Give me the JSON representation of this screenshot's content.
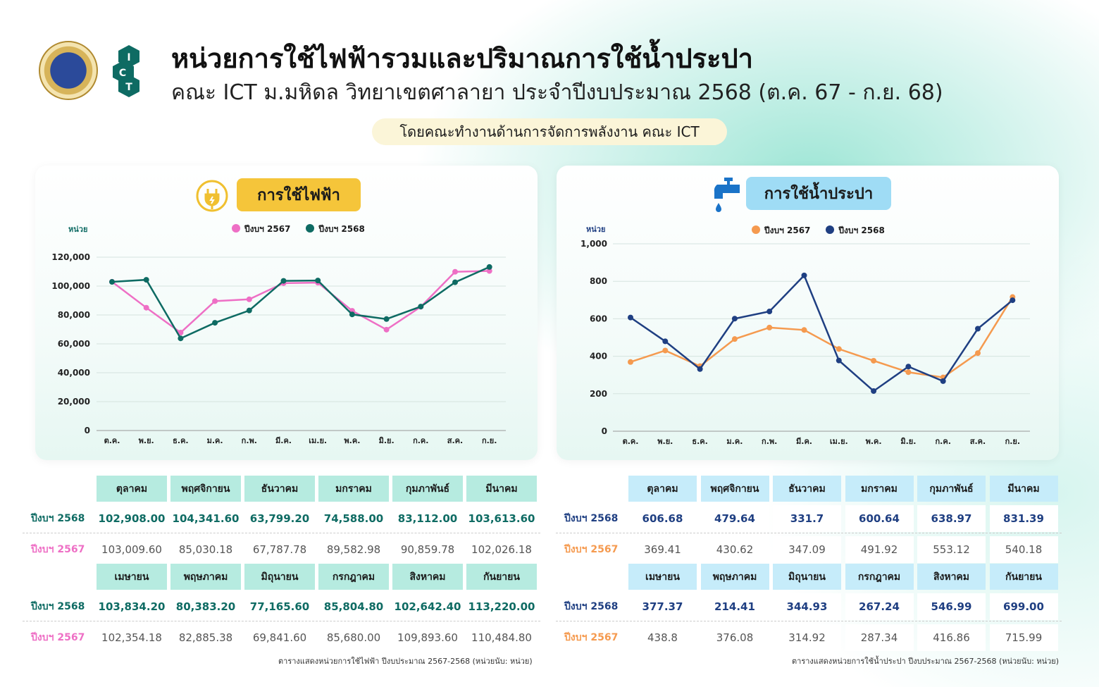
{
  "header": {
    "title": "หน่วยการใช้ไฟฟ้ารวมและปริมาณการใช้น้ำประปา",
    "subtitle": "คณะ ICT ม.มหิดล วิทยาเขตศาลายา ประจำปีงบประมาณ 2568 (ต.ค. 67 - ก.ย. 68)",
    "byline": "โดยคณะทำงานด้านการจัดการพลังงาน คณะ ICT",
    "logo_text": "ICT"
  },
  "months_short": [
    "ต.ค.",
    "พ.ย.",
    "ธ.ค.",
    "ม.ค.",
    "ก.พ.",
    "มี.ค.",
    "เม.ย.",
    "พ.ค.",
    "มิ.ย.",
    "ก.ค.",
    "ส.ค.",
    "ก.ย."
  ],
  "months_full": [
    "ตุลาคม",
    "พฤศจิกายน",
    "ธันวาคม",
    "มกราคม",
    "กุมภาพันธ์",
    "มีนาคม",
    "เมษายน",
    "พฤษภาคม",
    "มิถุนายน",
    "กรกฎาคม",
    "สิงหาคม",
    "กันยายน"
  ],
  "row_labels": {
    "y2568": "ปีงบฯ 2568",
    "y2567": "ปีงบฯ 2567"
  },
  "electric": {
    "badge": "การใช้ไฟฟ้า",
    "caption": "ตารางแสดงหน่วยการใช้ไฟฟ้า ปีงบประมาณ 2567-2568 (หน่วยนับ: หน่วย)",
    "table_2568": [
      "102,908.00",
      "104,341.60",
      "63,799.20",
      "74,588.00",
      "83,112.00",
      "103,613.60",
      "103,834.20",
      "80,383.20",
      "77,165.60",
      "85,804.80",
      "102,642.40",
      "113,220.00"
    ],
    "table_2567": [
      "103,009.60",
      "85,030.18",
      "67,787.78",
      "89,582.98",
      "90,859.78",
      "102,026.18",
      "102,354.18",
      "82,885.38",
      "69,841.60",
      "85,680.00",
      "109,893.60",
      "110,484.80"
    ]
  },
  "water": {
    "badge": "การใช้น้ำประปา",
    "caption": "ตารางแสดงหน่วยการใช้น้ำประปา ปีงบประมาณ 2567-2568 (หน่วยนับ: หน่วย)",
    "table_2568": [
      "606.68",
      "479.64",
      "331.7",
      "600.64",
      "638.97",
      "831.39",
      "377.37",
      "214.41",
      "344.93",
      "267.24",
      "546.99",
      "699.00"
    ],
    "table_2567": [
      "369.41",
      "430.62",
      "347.09",
      "491.92",
      "553.12",
      "540.18",
      "438.8",
      "376.08",
      "314.92",
      "287.34",
      "416.86",
      "715.99"
    ]
  },
  "chart_data": [
    {
      "type": "line",
      "title": "การใช้ไฟฟ้า",
      "ylabel": "หน่วย",
      "ylim": [
        0,
        120000
      ],
      "yticks": [
        0,
        20000,
        40000,
        60000,
        80000,
        100000,
        120000
      ],
      "ytick_labels": [
        "0",
        "20,000",
        "40,000",
        "60,000",
        "80,000",
        "100,000",
        "120,000"
      ],
      "categories": [
        "ต.ค.",
        "พ.ย.",
        "ธ.ค.",
        "ม.ค.",
        "ก.พ.",
        "มี.ค.",
        "เม.ย.",
        "พ.ค.",
        "มิ.ย.",
        "ก.ค.",
        "ส.ค.",
        "ก.ย."
      ],
      "legend": "top",
      "series": [
        {
          "name": "ปีงบฯ 2567",
          "color": "#ee6fc5",
          "values": [
            103009.6,
            85030.18,
            67787.78,
            89582.98,
            90859.78,
            102026.18,
            102354.18,
            82885.38,
            69841.6,
            85680,
            109893.6,
            110484.8
          ]
        },
        {
          "name": "ปีงบฯ 2568",
          "color": "#0e6b63",
          "values": [
            102908,
            104341.6,
            63799.2,
            74588,
            83112,
            103613.6,
            103834.2,
            80383.2,
            77165.6,
            85804.8,
            102642.4,
            113220
          ]
        }
      ]
    },
    {
      "type": "line",
      "title": "การใช้น้ำประปา",
      "ylabel": "หน่วย",
      "ylim": [
        0,
        1000
      ],
      "yticks": [
        0,
        200,
        400,
        600,
        800,
        1000
      ],
      "ytick_labels": [
        "0",
        "200",
        "400",
        "600",
        "800",
        "1,000"
      ],
      "categories": [
        "ต.ค.",
        "พ.ย.",
        "ธ.ค.",
        "ม.ค.",
        "ก.พ.",
        "มี.ค.",
        "เม.ย.",
        "พ.ค.",
        "มิ.ย.",
        "ก.ค.",
        "ส.ค.",
        "ก.ย."
      ],
      "legend": "top",
      "series": [
        {
          "name": "ปีงบฯ 2567",
          "color": "#f59a4f",
          "values": [
            369.41,
            430.62,
            347.09,
            491.92,
            553.12,
            540.18,
            438.8,
            376.08,
            314.92,
            287.34,
            416.86,
            715.99
          ]
        },
        {
          "name": "ปีงบฯ 2568",
          "color": "#1f3f82",
          "values": [
            606.68,
            479.64,
            331.7,
            600.64,
            638.97,
            831.39,
            377.37,
            214.41,
            344.93,
            267.24,
            546.99,
            699
          ]
        }
      ]
    }
  ],
  "colors": {
    "elec_header": "#b6ebe0",
    "water_header": "#c6ecfa",
    "elec_badge": "#f5c53a",
    "water_badge": "#9fdcf5"
  }
}
